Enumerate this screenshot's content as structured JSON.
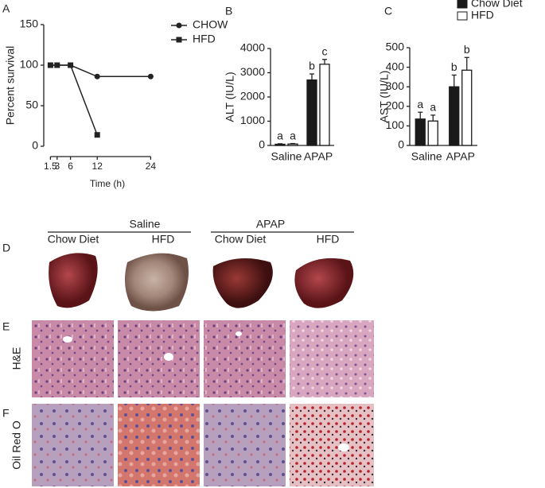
{
  "chart_data": [
    {
      "type": "line",
      "label": "A",
      "x": [
        1.5,
        3,
        6,
        12,
        24
      ],
      "xlim": [
        0,
        25
      ],
      "xticks": [
        1.5,
        3,
        6,
        12,
        24
      ],
      "ylim": [
        0,
        150
      ],
      "yticks": [
        0,
        50,
        100,
        150
      ],
      "x_label": "Time (h)",
      "y_label": "Percent survival",
      "series": [
        {
          "name": "CHOW",
          "color": "#222222",
          "marker": "circle",
          "values": [
            100,
            100,
            100,
            86,
            86
          ]
        },
        {
          "name": "HFD",
          "color": "#222222",
          "marker": "square",
          "values": [
            100,
            100,
            100,
            14,
            null
          ]
        }
      ],
      "legend": "right"
    },
    {
      "type": "bar",
      "label": "B",
      "categories": [
        "Saline",
        "APAP"
      ],
      "ylim": [
        0,
        4000
      ],
      "yticks": [
        0,
        1000,
        2000,
        3000,
        4000
      ],
      "y_label": "ALT (IU/L)",
      "series": [
        {
          "color": "#1a1a1a",
          "values": [
            50,
            2700
          ],
          "errors": [
            20,
            250
          ],
          "annotations": [
            "a",
            "b"
          ]
        },
        {
          "color": "#ffffff",
          "values": [
            60,
            3350
          ],
          "errors": [
            20,
            200
          ],
          "annotations": [
            "a",
            "c"
          ]
        }
      ]
    },
    {
      "type": "bar",
      "label": "C",
      "categories": [
        "Saline",
        "APAP"
      ],
      "ylim": [
        0,
        500
      ],
      "yticks": [
        0,
        100,
        200,
        300,
        400,
        500
      ],
      "y_label": "AST (IU/L)",
      "series": [
        {
          "name": "Chow Diet",
          "color": "#1a1a1a",
          "values": [
            135,
            300
          ],
          "errors": [
            35,
            60
          ],
          "annotations": [
            "a",
            "b"
          ]
        },
        {
          "name": "HFD",
          "color": "#ffffff",
          "values": [
            125,
            385
          ],
          "errors": [
            30,
            65
          ],
          "annotations": [
            "a",
            "b"
          ]
        }
      ],
      "legend": "top-right"
    }
  ],
  "histology": {
    "column_groups": [
      {
        "label": "Saline",
        "columns": [
          "Chow Diet",
          "HFD"
        ]
      },
      {
        "label": "APAP",
        "columns": [
          "Chow Diet",
          "HFD"
        ]
      }
    ],
    "rows": [
      {
        "panel": "D"
      },
      {
        "panel": "E",
        "label": "H&E"
      },
      {
        "panel": "F",
        "label": "Oil Red O"
      }
    ]
  }
}
